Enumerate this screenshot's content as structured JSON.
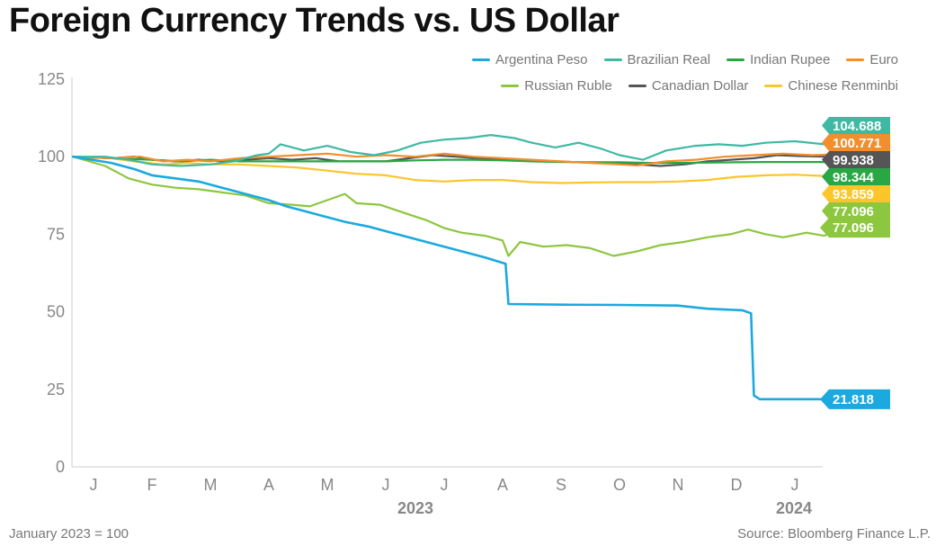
{
  "title": "Foreign Currency Trends vs. US Dollar",
  "note": "January 2023 = 100",
  "source": "Source: Bloomberg Finance L.P.",
  "chart_data": {
    "type": "line",
    "title": "Foreign Currency Trends vs. US Dollar",
    "ylim": [
      0,
      125
    ],
    "yticks": [
      0,
      25,
      50,
      75,
      100,
      125
    ],
    "ytick_labels": [
      "0",
      "25",
      "50",
      "75",
      "100",
      "125"
    ],
    "x_month_labels": [
      "J",
      "F",
      "M",
      "A",
      "M",
      "J",
      "J",
      "A",
      "S",
      "O",
      "N",
      "D",
      "J"
    ],
    "x_year_labels": [
      "2023",
      "2024"
    ],
    "x_months_index": [
      0,
      1,
      2,
      3,
      4,
      5,
      6,
      7,
      8,
      9,
      10,
      11,
      12
    ],
    "xlim_months": [
      -0.4,
      12.9
    ],
    "grid": false,
    "legend_position": "top-right",
    "series": [
      {
        "name": "Argentina Peso",
        "color": "#1ba9df",
        "end_label": "21.818",
        "points": [
          [
            -0.35,
            100
          ],
          [
            0.3,
            98
          ],
          [
            0.7,
            96
          ],
          [
            1.0,
            94
          ],
          [
            1.4,
            93
          ],
          [
            1.8,
            92
          ],
          [
            2.2,
            90
          ],
          [
            2.6,
            88
          ],
          [
            3.0,
            86
          ],
          [
            3.3,
            84
          ],
          [
            3.6,
            82.5
          ],
          [
            3.9,
            81
          ],
          [
            4.3,
            79
          ],
          [
            4.7,
            77.5
          ],
          [
            5.1,
            75.5
          ],
          [
            5.5,
            73.5
          ],
          [
            5.9,
            71.5
          ],
          [
            6.3,
            69.5
          ],
          [
            6.7,
            67.5
          ],
          [
            7.05,
            65.5
          ],
          [
            7.1,
            52.5
          ],
          [
            8.0,
            52.3
          ],
          [
            9.0,
            52.2
          ],
          [
            10.0,
            52
          ],
          [
            10.5,
            51
          ],
          [
            11.1,
            50.5
          ],
          [
            11.25,
            49.5
          ],
          [
            11.3,
            23
          ],
          [
            11.4,
            21.8
          ],
          [
            12.5,
            21.8
          ],
          [
            12.9,
            21.8
          ]
        ]
      },
      {
        "name": "Brazilian Real",
        "color": "#3fb9a3",
        "end_label": "104.688",
        "points": [
          [
            -0.35,
            100
          ],
          [
            0.2,
            100
          ],
          [
            0.6,
            99
          ],
          [
            1.0,
            97.5
          ],
          [
            1.5,
            97
          ],
          [
            2.0,
            97.5
          ],
          [
            2.4,
            98.5
          ],
          [
            2.8,
            100.5
          ],
          [
            3.0,
            101
          ],
          [
            3.2,
            104
          ],
          [
            3.6,
            102
          ],
          [
            4.0,
            103.5
          ],
          [
            4.4,
            101.5
          ],
          [
            4.8,
            100.5
          ],
          [
            5.2,
            102
          ],
          [
            5.6,
            104.5
          ],
          [
            6.0,
            105.5
          ],
          [
            6.4,
            106
          ],
          [
            6.8,
            107
          ],
          [
            7.2,
            106
          ],
          [
            7.5,
            104.5
          ],
          [
            7.9,
            103
          ],
          [
            8.3,
            104.5
          ],
          [
            8.7,
            102.5
          ],
          [
            9.0,
            100.5
          ],
          [
            9.4,
            99
          ],
          [
            9.8,
            102
          ],
          [
            10.3,
            103.5
          ],
          [
            10.7,
            104
          ],
          [
            11.1,
            103.5
          ],
          [
            11.5,
            104.5
          ],
          [
            12.0,
            105
          ],
          [
            12.5,
            104
          ],
          [
            12.9,
            104.7
          ]
        ]
      },
      {
        "name": "Indian Rupee",
        "color": "#2aa745",
        "end_label": "98.344",
        "points": [
          [
            -0.35,
            100
          ],
          [
            0.3,
            99.5
          ],
          [
            1.0,
            99
          ],
          [
            1.5,
            98.5
          ],
          [
            2.0,
            99
          ],
          [
            2.5,
            98.5
          ],
          [
            3.0,
            98.5
          ],
          [
            3.5,
            98.5
          ],
          [
            4.0,
            98.5
          ],
          [
            4.5,
            98.5
          ],
          [
            5.0,
            98.5
          ],
          [
            5.5,
            98.8
          ],
          [
            6.0,
            99
          ],
          [
            6.5,
            99
          ],
          [
            7.0,
            98.8
          ],
          [
            7.5,
            98.5
          ],
          [
            8.0,
            98.3
          ],
          [
            8.5,
            98.2
          ],
          [
            9.0,
            98.2
          ],
          [
            9.5,
            98
          ],
          [
            10.0,
            98
          ],
          [
            10.5,
            98.1
          ],
          [
            11.0,
            98.2
          ],
          [
            11.5,
            98.3
          ],
          [
            12.0,
            98.3
          ],
          [
            12.5,
            98.3
          ],
          [
            12.9,
            98.34
          ]
        ]
      },
      {
        "name": "Euro",
        "color": "#f28e2b",
        "end_label": "100.771",
        "points": [
          [
            -0.35,
            100
          ],
          [
            0.3,
            99.5
          ],
          [
            0.8,
            100
          ],
          [
            1.2,
            98.5
          ],
          [
            1.6,
            99
          ],
          [
            2.0,
            98.5
          ],
          [
            2.5,
            99.5
          ],
          [
            3.0,
            100
          ],
          [
            3.5,
            100.5
          ],
          [
            4.0,
            101
          ],
          [
            4.5,
            100
          ],
          [
            5.0,
            100.5
          ],
          [
            5.5,
            100
          ],
          [
            6.0,
            101
          ],
          [
            6.5,
            100
          ],
          [
            7.0,
            99.5
          ],
          [
            7.5,
            99
          ],
          [
            8.0,
            98.5
          ],
          [
            8.5,
            98
          ],
          [
            9.0,
            97.5
          ],
          [
            9.3,
            97.2
          ],
          [
            9.8,
            98.5
          ],
          [
            10.3,
            99
          ],
          [
            10.8,
            100
          ],
          [
            11.3,
            100.5
          ],
          [
            11.8,
            101
          ],
          [
            12.3,
            100.5
          ],
          [
            12.9,
            100.8
          ]
        ]
      },
      {
        "name": "Russian Ruble",
        "color": "#8dc63f",
        "end_label": "77.096",
        "points": [
          [
            -0.35,
            100
          ],
          [
            0.2,
            97
          ],
          [
            0.6,
            93
          ],
          [
            1.0,
            91
          ],
          [
            1.4,
            90
          ],
          [
            1.8,
            89.5
          ],
          [
            2.2,
            88.5
          ],
          [
            2.6,
            87.5
          ],
          [
            3.0,
            85
          ],
          [
            3.4,
            84.5
          ],
          [
            3.7,
            84
          ],
          [
            4.0,
            86
          ],
          [
            4.3,
            88
          ],
          [
            4.5,
            85
          ],
          [
            4.9,
            84.5
          ],
          [
            5.3,
            82
          ],
          [
            5.7,
            79.5
          ],
          [
            6.0,
            77
          ],
          [
            6.3,
            75.5
          ],
          [
            6.7,
            74.5
          ],
          [
            7.0,
            73
          ],
          [
            7.1,
            68
          ],
          [
            7.3,
            72.5
          ],
          [
            7.7,
            71
          ],
          [
            8.1,
            71.5
          ],
          [
            8.5,
            70.5
          ],
          [
            8.9,
            68
          ],
          [
            9.3,
            69.5
          ],
          [
            9.7,
            71.5
          ],
          [
            10.1,
            72.5
          ],
          [
            10.5,
            74
          ],
          [
            10.9,
            75
          ],
          [
            11.2,
            76.5
          ],
          [
            11.5,
            75
          ],
          [
            11.8,
            74
          ],
          [
            12.2,
            75.5
          ],
          [
            12.5,
            74.5
          ],
          [
            12.9,
            77.1
          ]
        ]
      },
      {
        "name": "Canadian Dollar",
        "color": "#555555",
        "end_label": "99.938",
        "points": [
          [
            -0.35,
            100
          ],
          [
            0.3,
            99.5
          ],
          [
            0.7,
            100
          ],
          [
            1.0,
            99
          ],
          [
            1.4,
            98.5
          ],
          [
            1.8,
            99
          ],
          [
            2.2,
            98.5
          ],
          [
            2.6,
            99
          ],
          [
            3.0,
            99.5
          ],
          [
            3.4,
            99
          ],
          [
            3.8,
            99.5
          ],
          [
            4.2,
            98.5
          ],
          [
            4.6,
            98.5
          ],
          [
            5.0,
            98.5
          ],
          [
            5.4,
            99.5
          ],
          [
            5.8,
            100.5
          ],
          [
            6.2,
            100
          ],
          [
            6.6,
            99.5
          ],
          [
            7.0,
            99
          ],
          [
            7.4,
            98.8
          ],
          [
            7.8,
            98.5
          ],
          [
            8.2,
            98.3
          ],
          [
            8.6,
            98
          ],
          [
            9.0,
            97.8
          ],
          [
            9.3,
            97.5
          ],
          [
            9.7,
            97
          ],
          [
            10.1,
            97.5
          ],
          [
            10.5,
            98.5
          ],
          [
            10.9,
            99
          ],
          [
            11.3,
            99.5
          ],
          [
            11.7,
            100.5
          ],
          [
            12.1,
            100.2
          ],
          [
            12.5,
            100
          ],
          [
            12.9,
            99.94
          ]
        ]
      },
      {
        "name": "Chinese Renminbi",
        "color": "#fcc52a",
        "end_label": "93.859",
        "points": [
          [
            -0.35,
            100
          ],
          [
            0.3,
            99.5
          ],
          [
            0.7,
            98.5
          ],
          [
            1.2,
            97.5
          ],
          [
            1.6,
            98
          ],
          [
            2.0,
            97.5
          ],
          [
            2.5,
            97.5
          ],
          [
            3.0,
            97
          ],
          [
            3.5,
            96.5
          ],
          [
            4.0,
            95.5
          ],
          [
            4.5,
            94.5
          ],
          [
            5.0,
            94
          ],
          [
            5.5,
            92.5
          ],
          [
            6.0,
            92
          ],
          [
            6.5,
            92.5
          ],
          [
            7.0,
            92.5
          ],
          [
            7.5,
            91.8
          ],
          [
            8.0,
            91.5
          ],
          [
            8.5,
            91.7
          ],
          [
            9.0,
            91.8
          ],
          [
            9.5,
            91.8
          ],
          [
            10.0,
            92
          ],
          [
            10.5,
            92.5
          ],
          [
            11.0,
            93.5
          ],
          [
            11.5,
            94
          ],
          [
            12.0,
            94.2
          ],
          [
            12.5,
            93.8
          ],
          [
            12.9,
            93.86
          ]
        ]
      }
    ],
    "end_label_order": [
      "Brazilian Real",
      "Euro",
      "Canadian Dollar",
      "Indian Rupee",
      "Chinese Renminbi",
      "Russian Ruble",
      "Argentina Peso"
    ],
    "end_label_colors": {
      "Brazilian Real": "#3fb9a3",
      "Euro": "#f28e2b",
      "Canadian Dollar": "#555555",
      "Indian Rupee": "#2aa745",
      "Chinese Renminbi": "#fcc52a",
      "Russian Ruble": "#8dc63f",
      "Argentina Peso": "#1ba9df"
    }
  }
}
